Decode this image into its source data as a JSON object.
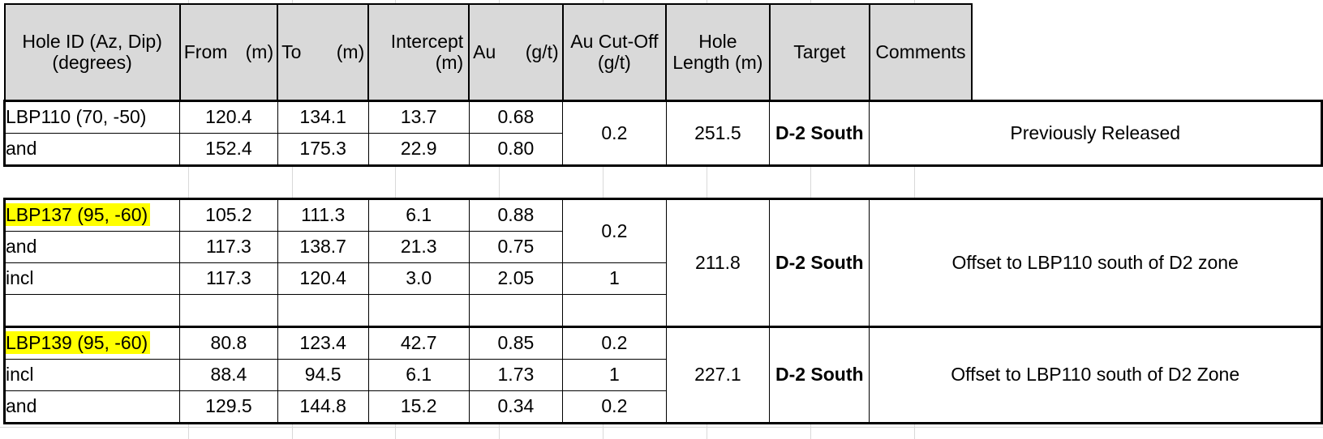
{
  "headers": {
    "hole_id": "Hole ID (Az, Dip) (degrees)",
    "from_label": "From",
    "from_unit": "(m)",
    "to_label": "To",
    "to_unit": "(m)",
    "intercept": "Intercept (m)",
    "au_label": "Au",
    "au_unit": "(g/t)",
    "cutoff": "Au Cut-Off (g/t)",
    "hole_length": "Hole Length (m)",
    "target": "Target",
    "comments": "Comments"
  },
  "groups": [
    {
      "hole_length": "251.5",
      "target": "D-2 South",
      "comment": "Previously Released",
      "rows": [
        {
          "id": "LBP110 (70, -50)",
          "from": "120.4",
          "to": "134.1",
          "intercept": "13.7",
          "au": "0.68"
        },
        {
          "id": "and",
          "from": "152.4",
          "to": "175.3",
          "intercept": "22.9",
          "au": "0.80"
        }
      ],
      "cutoffs": [
        "0.2"
      ]
    },
    {
      "hole_length": "211.8",
      "target": "D-2 South",
      "comment": "Offset to LBP110 south of D2 zone",
      "rows": [
        {
          "id": "LBP137 (95, -60)",
          "from": "105.2",
          "to": "111.3",
          "intercept": "6.1",
          "au": "0.88"
        },
        {
          "id": "and",
          "from": "117.3",
          "to": "138.7",
          "intercept": "21.3",
          "au": "0.75"
        },
        {
          "id": "incl",
          "from": "117.3",
          "to": "120.4",
          "intercept": "3.0",
          "au": "2.05"
        }
      ],
      "cutoffs": [
        "0.2",
        "1"
      ]
    },
    {
      "hole_length": "227.1",
      "target": "D-2 South",
      "comment": "Offset to LBP110 south of D2 Zone",
      "rows": [
        {
          "id": "LBP139 (95, -60)",
          "from": "80.8",
          "to": "123.4",
          "intercept": "42.7",
          "au": "0.85"
        },
        {
          "id": "incl",
          "from": "88.4",
          "to": "94.5",
          "intercept": "6.1",
          "au": "1.73"
        },
        {
          "id": "and",
          "from": "129.5",
          "to": "144.8",
          "intercept": "15.2",
          "au": "0.34"
        }
      ],
      "cutoffs": [
        "0.2",
        "1",
        "0.2"
      ]
    }
  ],
  "colors": {
    "header_bg": "#d9d9d9",
    "highlight": "#ffff00",
    "grid": "#d9d9d9"
  }
}
